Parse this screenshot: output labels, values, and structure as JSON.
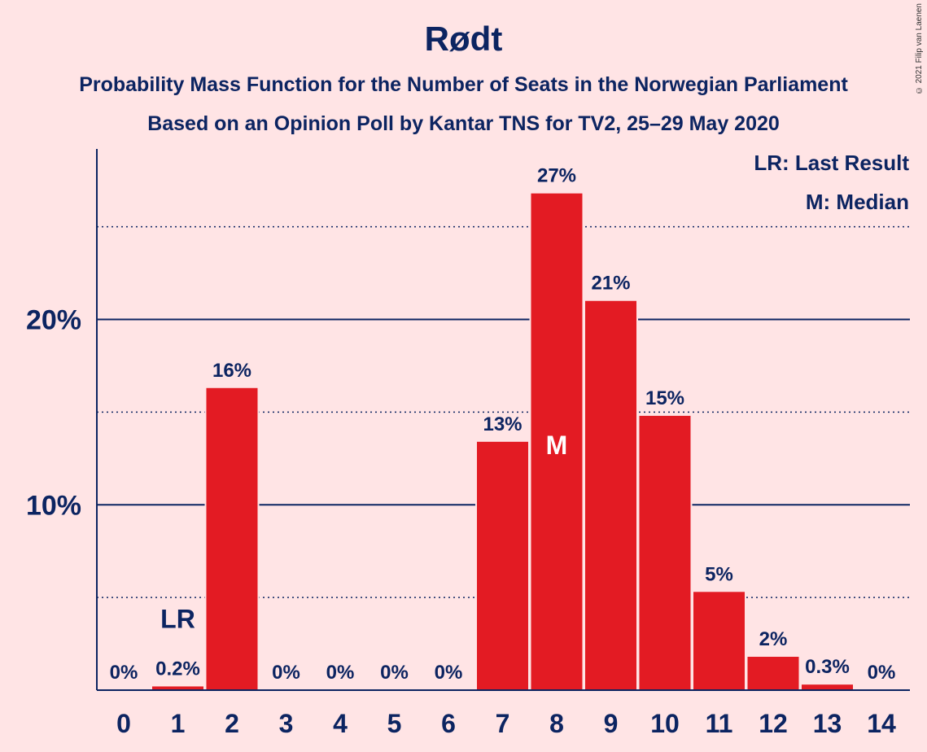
{
  "chart_data": {
    "type": "bar",
    "title": "Rødt",
    "subtitle_1": "Probability Mass Function for the Number of Seats in the Norwegian Parliament",
    "subtitle_2": "Based on an Opinion Poll by Kantar TNS for TV2, 25–29 May 2020",
    "copyright": "© 2021 Filip van Laenen",
    "categories": [
      "0",
      "1",
      "2",
      "3",
      "4",
      "5",
      "6",
      "7",
      "8",
      "9",
      "10",
      "11",
      "12",
      "13",
      "14"
    ],
    "values": [
      0,
      0.2,
      16.3,
      0,
      0,
      0,
      0,
      13.4,
      26.8,
      21.0,
      14.8,
      5.3,
      1.8,
      0.3,
      0
    ],
    "data_labels": [
      "0%",
      "0.2%",
      "16%",
      "0%",
      "0%",
      "0%",
      "0%",
      "13%",
      "27%",
      "21%",
      "15%",
      "5%",
      "2%",
      "0.3%",
      "0%"
    ],
    "ylim": [
      0,
      29.2
    ],
    "yticks": [
      {
        "value": 10,
        "label": "10%"
      },
      {
        "value": 20,
        "label": "20%"
      }
    ],
    "minor_gridlines": [
      5,
      15,
      25
    ],
    "last_result_seat": "1",
    "median_seat": "8",
    "last_result_marker": "LR",
    "median_marker": "M",
    "legend": [
      "LR: Last Result",
      "M: Median"
    ],
    "legend_position": "top-right",
    "colors": {
      "bar": "#E31B23",
      "text": "#0C2461",
      "background": "#FFE4E5",
      "axis": "#0C2461"
    }
  }
}
